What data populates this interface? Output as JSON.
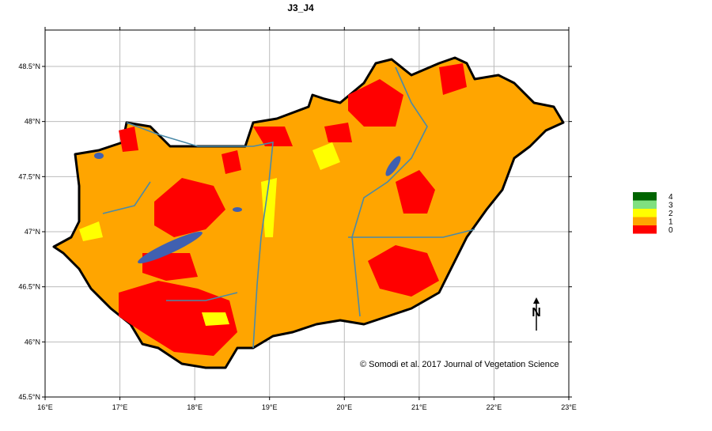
{
  "title": "J3_J4",
  "xticks": [
    {
      "value": 16,
      "label": "16°E"
    },
    {
      "value": 17,
      "label": "17°E"
    },
    {
      "value": 18,
      "label": "18°E"
    },
    {
      "value": 19,
      "label": "19°E"
    },
    {
      "value": 20,
      "label": "20°E"
    },
    {
      "value": 21,
      "label": "21°E"
    },
    {
      "value": 22,
      "label": "22°E"
    },
    {
      "value": 23,
      "label": "23°E"
    }
  ],
  "yticks": [
    {
      "value": 45.5,
      "label": "45.5°N"
    },
    {
      "value": 46,
      "label": "46°N"
    },
    {
      "value": 46.5,
      "label": "46.5°N"
    },
    {
      "value": 47,
      "label": "47°N"
    },
    {
      "value": 47.5,
      "label": "47.5°N"
    },
    {
      "value": 48,
      "label": "48°N"
    },
    {
      "value": 48.5,
      "label": "48.5°N"
    }
  ],
  "xlim": [
    16,
    23
  ],
  "ylim": [
    45.5,
    48.83
  ],
  "legend": [
    {
      "label": "4",
      "color": "#006400"
    },
    {
      "label": "3",
      "color": "#80e080"
    },
    {
      "label": "2",
      "color": "#ffff00"
    },
    {
      "label": "1",
      "color": "#ffa500"
    },
    {
      "label": "0",
      "color": "#ff0000"
    }
  ],
  "credit": "© Somodi et al. 2017 Journal of Vegetation Science",
  "north": "N"
}
